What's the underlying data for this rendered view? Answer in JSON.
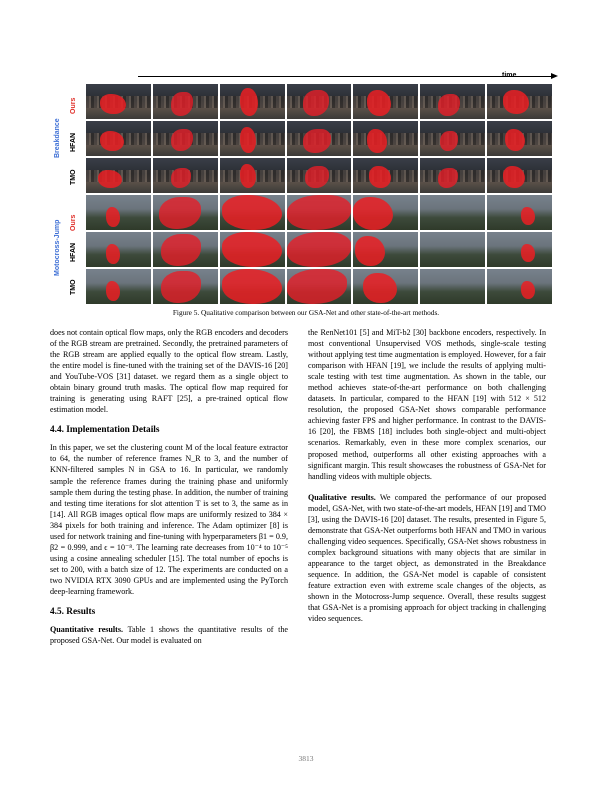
{
  "figure": {
    "time_label": "time",
    "groups": [
      "Breakdance",
      "Motocross-Jump"
    ],
    "row_labels": [
      "Ours",
      "HFAN",
      "TMO",
      "Ours",
      "HFAN",
      "TMO"
    ],
    "caption": "Figure 5. Qualitative comparison between our GSA-Net and other state-of-the-art methods."
  },
  "left_column": {
    "p1": "does not contain optical flow maps, only the RGB encoders and decoders of the RGB stream are pretrained. Secondly, the pretrained parameters of the RGB stream are applied equally to the optical flow stream. Lastly, the entire model is fine-tuned with the training set of the DAVIS-16 [20] and YouTube-VOS [31] dataset. we regard them as a single object to obtain binary ground truth masks. The optical flow map required for training is generating using RAFT [25], a pre-trained optical flow estimation model.",
    "h_impl": "4.4. Implementation Details",
    "p2": "In this paper, we set the clustering count M of the local feature extractor to 64, the number of reference frames N_R to 3, and the number of KNN-filtered samples N in GSA to 16. In particular, we randomly sample the reference frames during the training phase and uniformly sample them during the testing phase. In addition, the number of training and testing time iterations for slot attention T is set to 3, the same as in [14]. All RGB images optical flow maps are uniformly resized to 384 × 384 pixels for both training and inference. The Adam optimizer [8] is used for network training and fine-tuning with hyperparameters β1 = 0.9, β2 = 0.999, and ϵ = 10⁻⁸. The learning rate decreases from 10⁻⁴ to 10⁻⁵ using a cosine annealing scheduler [15]. The total number of epochs is set to 200, with a batch size of 12. The experiments are conducted on a two NVIDIA RTX 3090 GPUs and are implemented using the PyTorch deep-learning framework.",
    "h_results": "4.5. Results",
    "p3_title": "Quantitative results.",
    "p3": "Table 1 shows the quantitative results of the proposed GSA-Net. Our model is evaluated on"
  },
  "right_column": {
    "p1": "the RenNet101 [5] and MiT-b2 [30] backbone encoders, respectively. In most conventional Unsupervised VOS methods, single-scale testing without applying test time augmentation is employed. However, for a fair comparison with HFAN [19], we include the results of applying multi-scale testing with test time augmentation. As shown in the table, our method achieves state-of-the-art performance on both challenging datasets. In particular, compared to the HFAN [19] with 512 × 512 resolution, the proposed GSA-Net shows comparable performance achieving faster FPS and higher performance. In contrast to the DAVIS-16 [20], the FBMS [18] includes both single-object and multi-object scenarios. Remarkably, even in these more complex scenarios, our proposed method, outperforms all other existing approaches with a significant margin. This result showcases the robustness of GSA-Net for handling videos with multiple objects.",
    "p2_title": "Qualitative results.",
    "p2": "We compared the performance of our proposed model, GSA-Net, with two state-of-the-art models, HFAN [19] and TMO [3], using the DAVIS-16 [20] dataset. The results, presented in Figure 5, demonstrate that GSA-Net outperforms both HFAN and TMO in various challenging video sequences. Specifically, GSA-Net shows robustness in complex background situations with many objects that are similar in appearance to the target object, as demonstrated in the Breakdance sequence. In addition, the GSA-Net model is capable of consistent feature extraction even with extreme scale changes of the objects, as shown in the Motocross-Jump sequence. Overall, these results suggest that GSA-Net is a promising approach for object tracking in challenging video sequences."
  },
  "page_number": "3813"
}
